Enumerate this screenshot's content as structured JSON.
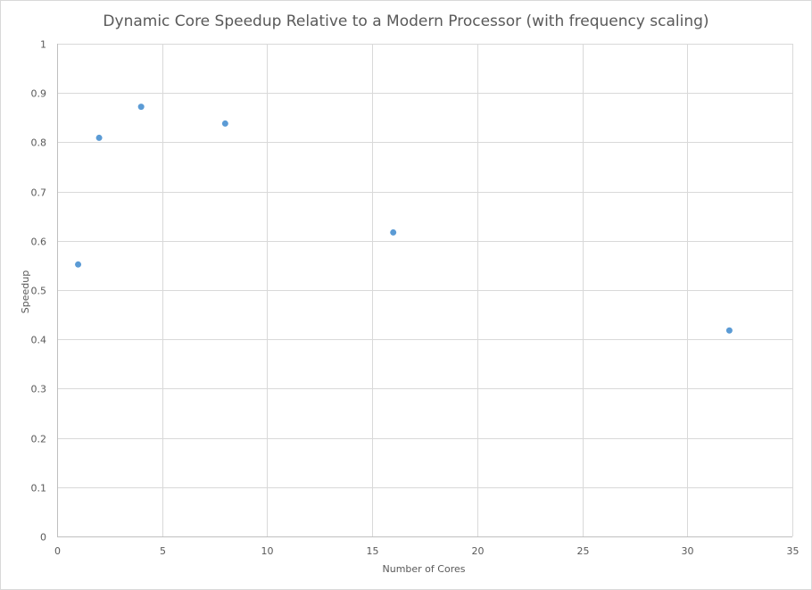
{
  "chart_data": {
    "type": "scatter",
    "title": "Dynamic Core Speedup Relative to a Modern Processor (with frequency scaling)",
    "xlabel": "Number  of Cores",
    "ylabel": "Speedup",
    "xlim": [
      0,
      35
    ],
    "ylim": [
      0,
      1
    ],
    "x_ticks": [
      0,
      5,
      10,
      15,
      20,
      25,
      30,
      35
    ],
    "y_ticks": [
      0,
      0.1,
      0.2,
      0.3,
      0.4,
      0.5,
      0.6,
      0.7,
      0.8,
      0.9,
      1
    ],
    "x_tick_labels": [
      "0",
      "5",
      "10",
      "15",
      "20",
      "25",
      "30",
      "35"
    ],
    "y_tick_labels": [
      "0",
      "0.1",
      "0.2",
      "0.3",
      "0.4",
      "0.5",
      "0.6",
      "0.7",
      "0.8",
      "0.9",
      "1"
    ],
    "grid": true,
    "legend": "none",
    "series": [
      {
        "color": "#5b9bd5",
        "points": [
          {
            "x": 1,
            "y": 0.552
          },
          {
            "x": 2,
            "y": 0.809
          },
          {
            "x": 4,
            "y": 0.872
          },
          {
            "x": 8,
            "y": 0.838
          },
          {
            "x": 16,
            "y": 0.617
          },
          {
            "x": 32,
            "y": 0.418
          }
        ]
      }
    ]
  }
}
